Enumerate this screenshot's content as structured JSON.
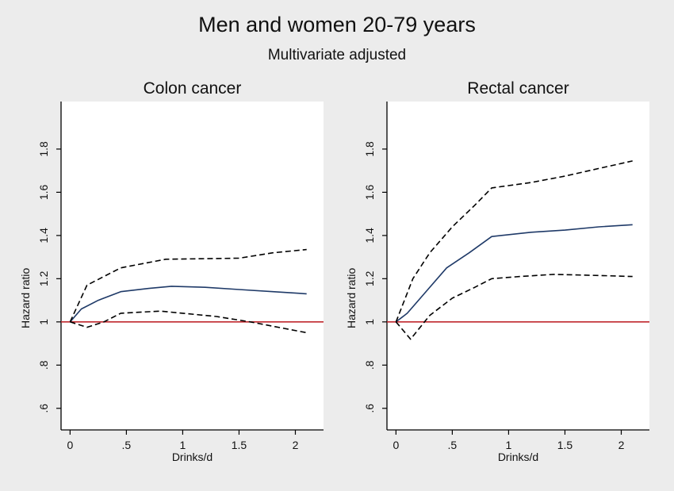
{
  "title": "Men and women 20-79 years",
  "subtitle": "Multivariate adjusted",
  "colors": {
    "background": "#ececec",
    "plot_area": "#ffffff",
    "estimate": "#1f3a68",
    "ci": "#000000",
    "reference": "#c0282d"
  },
  "chart_data": [
    {
      "type": "line",
      "title": "Colon cancer",
      "xlabel": "Drinks/d",
      "ylabel": "Hazard ratio",
      "xlim": [
        -0.08,
        2.25
      ],
      "ylim": [
        0.5,
        2.02
      ],
      "x_ticks": [
        0,
        0.5,
        1,
        1.5,
        2
      ],
      "x_tick_labels": [
        "0",
        ".5",
        "1",
        "1.5",
        "2"
      ],
      "y_ticks": [
        0.6,
        0.8,
        1,
        1.2,
        1.4,
        1.6,
        1.8
      ],
      "y_tick_labels": [
        ".6",
        ".8",
        "1",
        "1.2",
        "1.4",
        "1.6",
        "1.8"
      ],
      "reference_line": 1,
      "series": [
        {
          "role": "estimate",
          "style": "solid",
          "x": [
            0,
            0.1,
            0.25,
            0.45,
            0.7,
            0.9,
            1.2,
            1.5,
            1.8,
            2.1
          ],
          "y": [
            1.0,
            1.06,
            1.1,
            1.14,
            1.155,
            1.165,
            1.16,
            1.15,
            1.14,
            1.13
          ]
        },
        {
          "role": "upper",
          "style": "dashed",
          "x": [
            0,
            0.15,
            0.45,
            0.85,
            1.5,
            1.8,
            2.1
          ],
          "y": [
            1.0,
            1.17,
            1.25,
            1.29,
            1.295,
            1.32,
            1.335
          ]
        },
        {
          "role": "lower",
          "style": "dashed",
          "x": [
            0,
            0.15,
            0.3,
            0.45,
            0.8,
            1.0,
            1.3,
            1.6,
            1.9,
            2.1
          ],
          "y": [
            1.0,
            0.975,
            1.0,
            1.04,
            1.05,
            1.04,
            1.025,
            1.0,
            0.97,
            0.95
          ]
        }
      ]
    },
    {
      "type": "line",
      "title": "Rectal cancer",
      "xlabel": "Drinks/d",
      "ylabel": "Hazard ratio",
      "xlim": [
        -0.08,
        2.25
      ],
      "ylim": [
        0.5,
        2.02
      ],
      "x_ticks": [
        0,
        0.5,
        1,
        1.5,
        2
      ],
      "x_tick_labels": [
        "0",
        ".5",
        "1",
        "1.5",
        "2"
      ],
      "y_ticks": [
        0.6,
        0.8,
        1,
        1.2,
        1.4,
        1.6,
        1.8
      ],
      "y_tick_labels": [
        ".6",
        ".8",
        "1",
        "1.2",
        "1.4",
        "1.6",
        "1.8"
      ],
      "reference_line": 1,
      "series": [
        {
          "role": "estimate",
          "style": "solid",
          "x": [
            0,
            0.1,
            0.25,
            0.45,
            0.65,
            0.85,
            1.2,
            1.5,
            1.8,
            2.1
          ],
          "y": [
            1.0,
            1.04,
            1.13,
            1.25,
            1.32,
            1.395,
            1.415,
            1.425,
            1.44,
            1.45
          ]
        },
        {
          "role": "upper",
          "style": "dashed",
          "x": [
            0,
            0.15,
            0.3,
            0.5,
            0.7,
            0.85,
            1.2,
            1.5,
            1.8,
            2.1
          ],
          "y": [
            1.0,
            1.2,
            1.32,
            1.44,
            1.54,
            1.62,
            1.645,
            1.675,
            1.71,
            1.745
          ]
        },
        {
          "role": "lower",
          "style": "dashed",
          "x": [
            0,
            0.13,
            0.3,
            0.5,
            0.7,
            0.85,
            1.1,
            1.4,
            1.8,
            2.1
          ],
          "y": [
            1.0,
            0.92,
            1.03,
            1.11,
            1.16,
            1.2,
            1.21,
            1.22,
            1.215,
            1.21
          ]
        }
      ]
    }
  ]
}
